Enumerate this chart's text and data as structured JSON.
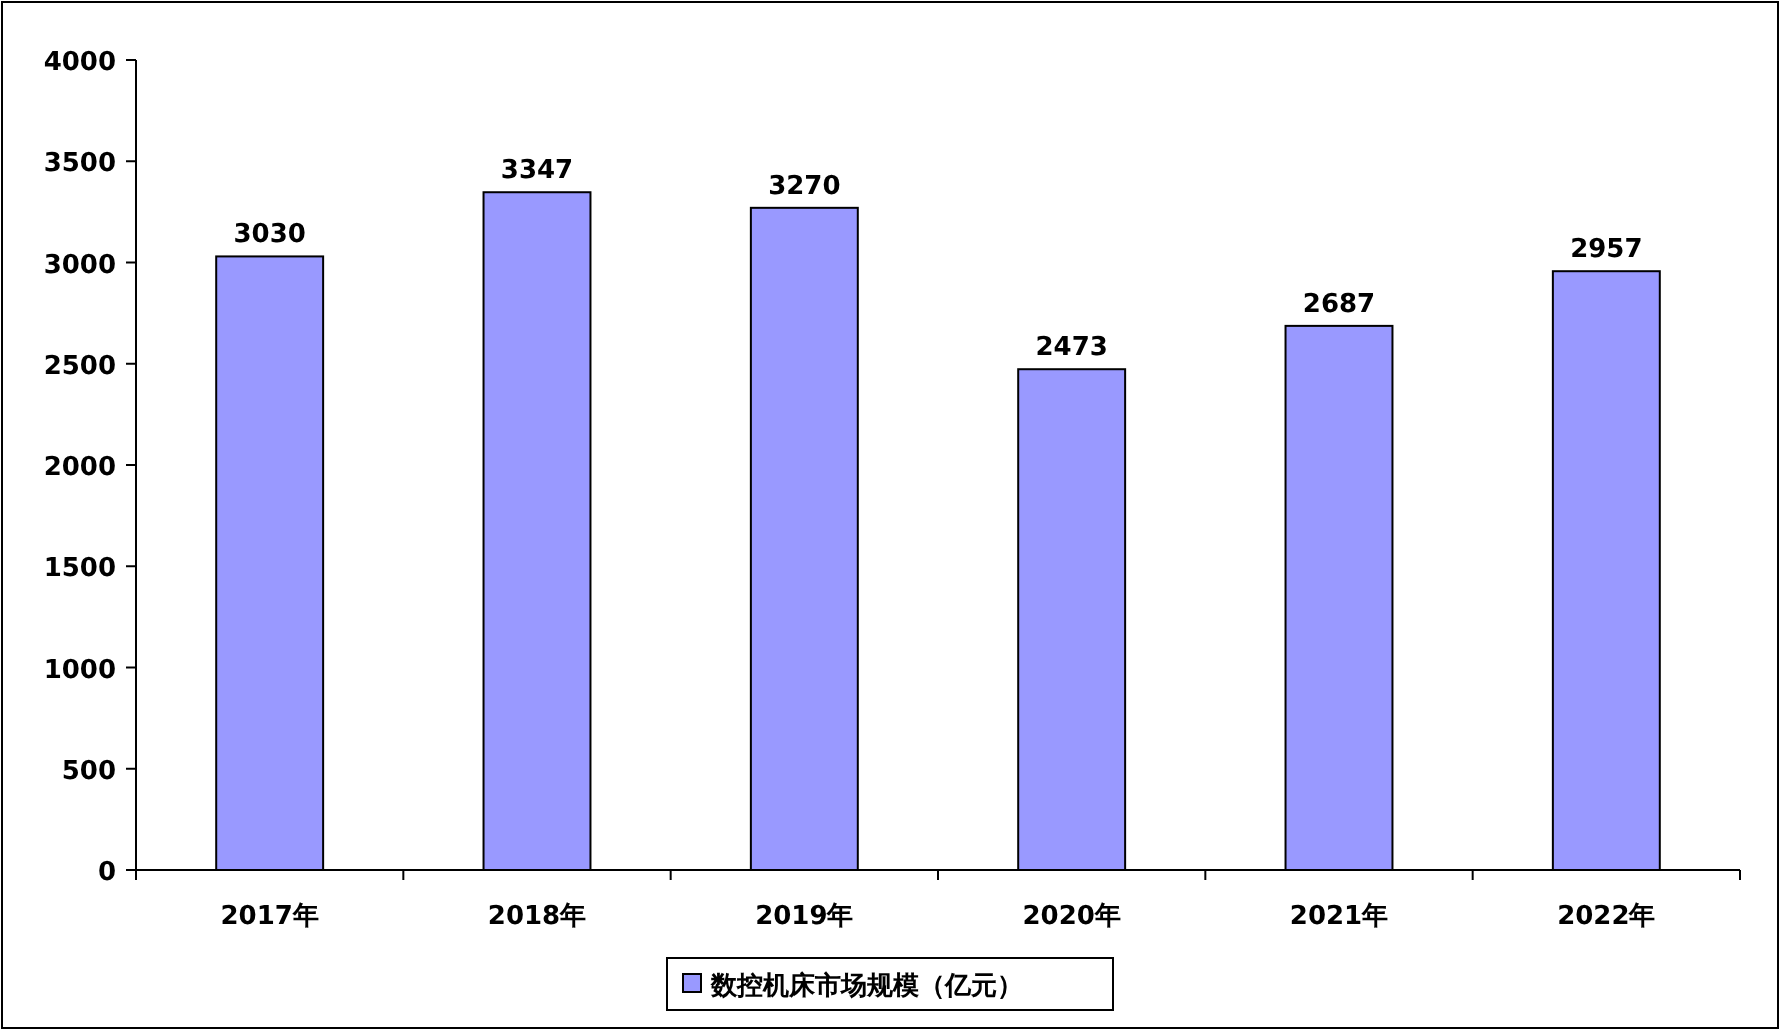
{
  "chart_data": {
    "type": "bar",
    "categories": [
      "2017年",
      "2018年",
      "2019年",
      "2020年",
      "2021年",
      "2022年"
    ],
    "series": [
      {
        "name": "数控机床市场规模（亿元）",
        "color": "#9999ff",
        "values": [
          3030,
          3347,
          3270,
          2473,
          2687,
          2957
        ]
      }
    ],
    "ylim": [
      0,
      4000
    ],
    "yticks": [
      0,
      500,
      1000,
      1500,
      2000,
      2500,
      3000,
      3500,
      4000
    ],
    "data_labels": true,
    "legend": "bottom"
  }
}
